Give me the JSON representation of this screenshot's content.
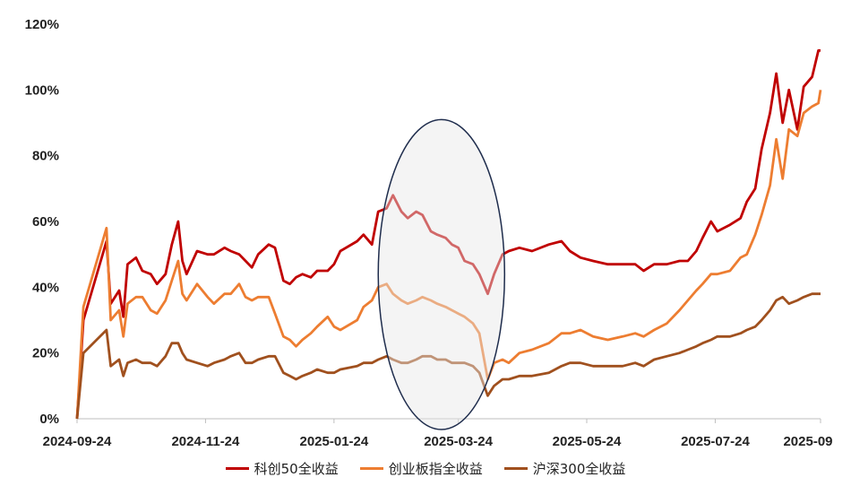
{
  "chart_data": {
    "type": "line",
    "ylim": [
      0,
      120
    ],
    "yticks": [
      "0%",
      "20%",
      "40%",
      "60%",
      "80%",
      "100%",
      "120%"
    ],
    "xticks": [
      "2024-09-24",
      "2024-11-24",
      "2025-01-24",
      "2025-03-24",
      "2025-05-24",
      "2025-07-24",
      "2025-09"
    ],
    "grid": false,
    "legend_position": "bottom",
    "series": [
      {
        "name": "科创50全收益",
        "color": "#C00000",
        "points": [
          [
            "2024-09-24",
            0
          ],
          [
            "2024-09-27",
            30
          ],
          [
            "2024-10-08",
            54
          ],
          [
            "2024-10-10",
            35
          ],
          [
            "2024-10-14",
            39
          ],
          [
            "2024-10-16",
            31
          ],
          [
            "2024-10-18",
            47
          ],
          [
            "2024-10-22",
            49
          ],
          [
            "2024-10-25",
            45
          ],
          [
            "2024-10-29",
            44
          ],
          [
            "2024-11-01",
            41
          ],
          [
            "2024-11-05",
            44
          ],
          [
            "2024-11-08",
            53
          ],
          [
            "2024-11-11",
            60
          ],
          [
            "2024-11-13",
            48
          ],
          [
            "2024-11-15",
            44
          ],
          [
            "2024-11-20",
            51
          ],
          [
            "2024-11-25",
            50
          ],
          [
            "2024-11-28",
            50
          ],
          [
            "2024-12-03",
            52
          ],
          [
            "2024-12-06",
            51
          ],
          [
            "2024-12-10",
            50
          ],
          [
            "2024-12-13",
            48
          ],
          [
            "2024-12-16",
            46
          ],
          [
            "2024-12-19",
            50
          ],
          [
            "2024-12-24",
            53
          ],
          [
            "2024-12-27",
            52
          ],
          [
            "2024-12-31",
            42
          ],
          [
            "2025-01-03",
            41
          ],
          [
            "2025-01-06",
            43
          ],
          [
            "2025-01-09",
            44
          ],
          [
            "2025-01-13",
            43
          ],
          [
            "2025-01-16",
            45
          ],
          [
            "2025-01-21",
            45
          ],
          [
            "2025-01-24",
            47
          ],
          [
            "2025-01-27",
            51
          ],
          [
            "2025-02-04",
            54
          ],
          [
            "2025-02-07",
            56
          ],
          [
            "2025-02-11",
            53
          ],
          [
            "2025-02-14",
            63
          ],
          [
            "2025-02-18",
            64
          ],
          [
            "2025-02-21",
            68
          ],
          [
            "2025-02-25",
            63
          ],
          [
            "2025-02-28",
            61
          ],
          [
            "2025-03-04",
            63
          ],
          [
            "2025-03-07",
            62
          ],
          [
            "2025-03-11",
            57
          ],
          [
            "2025-03-14",
            56
          ],
          [
            "2025-03-18",
            55
          ],
          [
            "2025-03-21",
            53
          ],
          [
            "2025-03-24",
            52
          ],
          [
            "2025-03-27",
            48
          ],
          [
            "2025-03-31",
            47
          ],
          [
            "2025-04-03",
            44
          ],
          [
            "2025-04-07",
            38
          ],
          [
            "2025-04-10",
            44
          ],
          [
            "2025-04-14",
            50
          ],
          [
            "2025-04-17",
            51
          ],
          [
            "2025-04-22",
            52
          ],
          [
            "2025-04-28",
            51
          ],
          [
            "2025-05-06",
            53
          ],
          [
            "2025-05-12",
            54
          ],
          [
            "2025-05-16",
            51
          ],
          [
            "2025-05-21",
            49
          ],
          [
            "2025-05-27",
            48
          ],
          [
            "2025-06-03",
            47
          ],
          [
            "2025-06-10",
            47
          ],
          [
            "2025-06-16",
            47
          ],
          [
            "2025-06-20",
            45
          ],
          [
            "2025-06-25",
            47
          ],
          [
            "2025-07-01",
            47
          ],
          [
            "2025-07-07",
            48
          ],
          [
            "2025-07-11",
            48
          ],
          [
            "2025-07-15",
            51
          ],
          [
            "2025-07-18",
            55
          ],
          [
            "2025-07-22",
            60
          ],
          [
            "2025-07-25",
            57
          ],
          [
            "2025-07-31",
            59
          ],
          [
            "2025-08-05",
            61
          ],
          [
            "2025-08-08",
            66
          ],
          [
            "2025-08-12",
            70
          ],
          [
            "2025-08-15",
            82
          ],
          [
            "2025-08-19",
            93
          ],
          [
            "2025-08-22",
            105
          ],
          [
            "2025-08-25",
            90
          ],
          [
            "2025-08-28",
            100
          ],
          [
            "2025-09-01",
            88
          ],
          [
            "2025-09-04",
            101
          ],
          [
            "2025-09-08",
            104
          ],
          [
            "2025-09-11",
            112
          ],
          [
            "2025-09-12",
            112
          ]
        ]
      },
      {
        "name": "创业板指全收益",
        "color": "#ED7D31",
        "points": [
          [
            "2024-09-24",
            0
          ],
          [
            "2024-09-27",
            34
          ],
          [
            "2024-10-08",
            58
          ],
          [
            "2024-10-10",
            30
          ],
          [
            "2024-10-14",
            33
          ],
          [
            "2024-10-16",
            25
          ],
          [
            "2024-10-18",
            35
          ],
          [
            "2024-10-22",
            37
          ],
          [
            "2024-10-25",
            37
          ],
          [
            "2024-10-29",
            33
          ],
          [
            "2024-11-01",
            32
          ],
          [
            "2024-11-05",
            36
          ],
          [
            "2024-11-08",
            42
          ],
          [
            "2024-11-11",
            48
          ],
          [
            "2024-11-13",
            38
          ],
          [
            "2024-11-15",
            36
          ],
          [
            "2024-11-20",
            41
          ],
          [
            "2024-11-25",
            37
          ],
          [
            "2024-11-28",
            35
          ],
          [
            "2024-12-03",
            38
          ],
          [
            "2024-12-06",
            38
          ],
          [
            "2024-12-10",
            41
          ],
          [
            "2024-12-13",
            37
          ],
          [
            "2024-12-16",
            36
          ],
          [
            "2024-12-19",
            37
          ],
          [
            "2024-12-24",
            37
          ],
          [
            "2024-12-27",
            32
          ],
          [
            "2024-12-31",
            25
          ],
          [
            "2025-01-03",
            24
          ],
          [
            "2025-01-06",
            22
          ],
          [
            "2025-01-09",
            24
          ],
          [
            "2025-01-13",
            26
          ],
          [
            "2025-01-16",
            28
          ],
          [
            "2025-01-21",
            31
          ],
          [
            "2025-01-24",
            28
          ],
          [
            "2025-01-27",
            27
          ],
          [
            "2025-02-04",
            30
          ],
          [
            "2025-02-07",
            34
          ],
          [
            "2025-02-11",
            36
          ],
          [
            "2025-02-14",
            40
          ],
          [
            "2025-02-18",
            41
          ],
          [
            "2025-02-21",
            38
          ],
          [
            "2025-02-25",
            36
          ],
          [
            "2025-02-28",
            35
          ],
          [
            "2025-03-04",
            36
          ],
          [
            "2025-03-07",
            37
          ],
          [
            "2025-03-11",
            36
          ],
          [
            "2025-03-14",
            35
          ],
          [
            "2025-03-18",
            34
          ],
          [
            "2025-03-21",
            33
          ],
          [
            "2025-03-24",
            32
          ],
          [
            "2025-03-27",
            31
          ],
          [
            "2025-03-31",
            29
          ],
          [
            "2025-04-03",
            26
          ],
          [
            "2025-04-07",
            12
          ],
          [
            "2025-04-10",
            17
          ],
          [
            "2025-04-14",
            18
          ],
          [
            "2025-04-17",
            17
          ],
          [
            "2025-04-22",
            20
          ],
          [
            "2025-04-28",
            21
          ],
          [
            "2025-05-06",
            23
          ],
          [
            "2025-05-12",
            26
          ],
          [
            "2025-05-16",
            26
          ],
          [
            "2025-05-21",
            27
          ],
          [
            "2025-05-27",
            25
          ],
          [
            "2025-06-03",
            24
          ],
          [
            "2025-06-10",
            25
          ],
          [
            "2025-06-16",
            26
          ],
          [
            "2025-06-20",
            25
          ],
          [
            "2025-06-25",
            27
          ],
          [
            "2025-07-01",
            29
          ],
          [
            "2025-07-07",
            33
          ],
          [
            "2025-07-11",
            36
          ],
          [
            "2025-07-15",
            39
          ],
          [
            "2025-07-18",
            41
          ],
          [
            "2025-07-22",
            44
          ],
          [
            "2025-07-25",
            44
          ],
          [
            "2025-07-31",
            45
          ],
          [
            "2025-08-05",
            49
          ],
          [
            "2025-08-08",
            50
          ],
          [
            "2025-08-12",
            56
          ],
          [
            "2025-08-15",
            62
          ],
          [
            "2025-08-19",
            71
          ],
          [
            "2025-08-22",
            85
          ],
          [
            "2025-08-25",
            73
          ],
          [
            "2025-08-28",
            88
          ],
          [
            "2025-09-01",
            86
          ],
          [
            "2025-09-04",
            93
          ],
          [
            "2025-09-08",
            95
          ],
          [
            "2025-09-11",
            96
          ],
          [
            "2025-09-12",
            100
          ]
        ]
      },
      {
        "name": "沪深300全收益",
        "color": "#A0501E",
        "points": [
          [
            "2024-09-24",
            0
          ],
          [
            "2024-09-27",
            20
          ],
          [
            "2024-10-08",
            27
          ],
          [
            "2024-10-10",
            16
          ],
          [
            "2024-10-14",
            18
          ],
          [
            "2024-10-16",
            13
          ],
          [
            "2024-10-18",
            17
          ],
          [
            "2024-10-22",
            18
          ],
          [
            "2024-10-25",
            17
          ],
          [
            "2024-10-29",
            17
          ],
          [
            "2024-11-01",
            16
          ],
          [
            "2024-11-05",
            19
          ],
          [
            "2024-11-08",
            23
          ],
          [
            "2024-11-11",
            23
          ],
          [
            "2024-11-13",
            20
          ],
          [
            "2024-11-15",
            18
          ],
          [
            "2024-11-20",
            17
          ],
          [
            "2024-11-25",
            16
          ],
          [
            "2024-11-28",
            17
          ],
          [
            "2024-12-03",
            18
          ],
          [
            "2024-12-06",
            19
          ],
          [
            "2024-12-10",
            20
          ],
          [
            "2024-12-13",
            17
          ],
          [
            "2024-12-16",
            17
          ],
          [
            "2024-12-19",
            18
          ],
          [
            "2024-12-24",
            19
          ],
          [
            "2024-12-27",
            19
          ],
          [
            "2024-12-31",
            14
          ],
          [
            "2025-01-03",
            13
          ],
          [
            "2025-01-06",
            12
          ],
          [
            "2025-01-09",
            13
          ],
          [
            "2025-01-13",
            14
          ],
          [
            "2025-01-16",
            15
          ],
          [
            "2025-01-21",
            14
          ],
          [
            "2025-01-24",
            14
          ],
          [
            "2025-01-27",
            15
          ],
          [
            "2025-02-04",
            16
          ],
          [
            "2025-02-07",
            17
          ],
          [
            "2025-02-11",
            17
          ],
          [
            "2025-02-14",
            18
          ],
          [
            "2025-02-18",
            19
          ],
          [
            "2025-02-21",
            18
          ],
          [
            "2025-02-25",
            17
          ],
          [
            "2025-02-28",
            17
          ],
          [
            "2025-03-04",
            18
          ],
          [
            "2025-03-07",
            19
          ],
          [
            "2025-03-11",
            19
          ],
          [
            "2025-03-14",
            18
          ],
          [
            "2025-03-18",
            18
          ],
          [
            "2025-03-21",
            17
          ],
          [
            "2025-03-24",
            17
          ],
          [
            "2025-03-27",
            17
          ],
          [
            "2025-03-31",
            16
          ],
          [
            "2025-04-03",
            14
          ],
          [
            "2025-04-07",
            7
          ],
          [
            "2025-04-10",
            10
          ],
          [
            "2025-04-14",
            12
          ],
          [
            "2025-04-17",
            12
          ],
          [
            "2025-04-22",
            13
          ],
          [
            "2025-04-28",
            13
          ],
          [
            "2025-05-06",
            14
          ],
          [
            "2025-05-12",
            16
          ],
          [
            "2025-05-16",
            17
          ],
          [
            "2025-05-21",
            17
          ],
          [
            "2025-05-27",
            16
          ],
          [
            "2025-06-03",
            16
          ],
          [
            "2025-06-10",
            16
          ],
          [
            "2025-06-16",
            17
          ],
          [
            "2025-06-20",
            16
          ],
          [
            "2025-06-25",
            18
          ],
          [
            "2025-07-01",
            19
          ],
          [
            "2025-07-07",
            20
          ],
          [
            "2025-07-11",
            21
          ],
          [
            "2025-07-15",
            22
          ],
          [
            "2025-07-18",
            23
          ],
          [
            "2025-07-22",
            24
          ],
          [
            "2025-07-25",
            25
          ],
          [
            "2025-07-31",
            25
          ],
          [
            "2025-08-05",
            26
          ],
          [
            "2025-08-08",
            27
          ],
          [
            "2025-08-12",
            28
          ],
          [
            "2025-08-15",
            30
          ],
          [
            "2025-08-19",
            33
          ],
          [
            "2025-08-22",
            36
          ],
          [
            "2025-08-25",
            37
          ],
          [
            "2025-08-28",
            35
          ],
          [
            "2025-09-01",
            36
          ],
          [
            "2025-09-04",
            37
          ],
          [
            "2025-09-08",
            38
          ],
          [
            "2025-09-11",
            38
          ],
          [
            "2025-09-12",
            38
          ]
        ]
      }
    ],
    "highlight_region": {
      "x": [
        "2025-02-14",
        "2025-04-15"
      ],
      "y": [
        0,
        91
      ]
    }
  }
}
